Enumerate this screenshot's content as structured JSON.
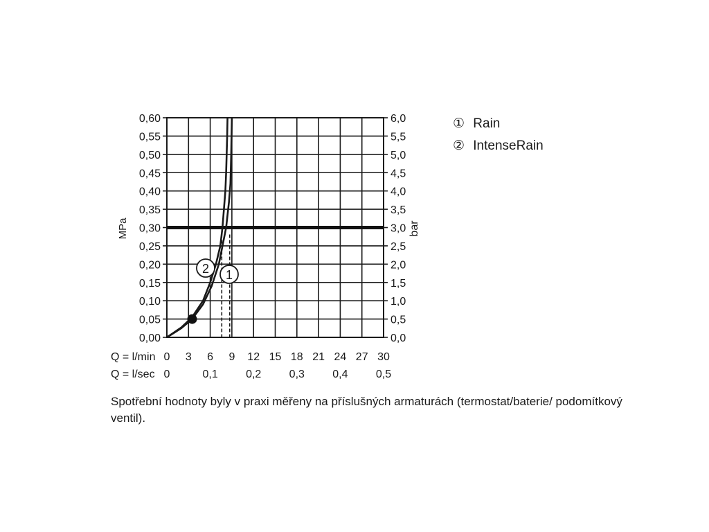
{
  "chart_data": {
    "type": "line",
    "left_axis_label": "MPa",
    "right_axis_label": "bar",
    "y_ticks_left": [
      "0,00",
      "0,05",
      "0,10",
      "0,15",
      "0,20",
      "0,25",
      "0,30",
      "0,35",
      "0,40",
      "0,45",
      "0,50",
      "0,55",
      "0,60"
    ],
    "y_ticks_right": [
      "0,0",
      "0,5",
      "1,0",
      "1,5",
      "2,0",
      "2,5",
      "3,0",
      "3,5",
      "4,0",
      "4,5",
      "5,0",
      "5,5",
      "6,0"
    ],
    "ylim": [
      0,
      0.6
    ],
    "x_row_lmin_label": "Q = l/min",
    "x_ticks_lmin": [
      "0",
      "3",
      "6",
      "9",
      "12",
      "15",
      "18",
      "21",
      "24",
      "27",
      "30"
    ],
    "x_row_lsec_label": "Q = l/sec",
    "x_ticks_lsec": [
      "0",
      "0,1",
      "0,2",
      "0,3",
      "0,4",
      "0,5"
    ],
    "xlim": [
      0,
      30
    ],
    "grid": true,
    "reference_pressure": 0.3,
    "series": [
      {
        "name": "Rain",
        "marker": "1",
        "x": [
          0,
          2,
          3.5,
          5,
          6.2,
          7.2,
          7.8,
          8.2,
          8.6,
          8.8,
          8.9,
          8.95,
          9.0
        ],
        "y": [
          0,
          0.025,
          0.05,
          0.09,
          0.14,
          0.2,
          0.26,
          0.3,
          0.37,
          0.42,
          0.5,
          0.55,
          0.6
        ],
        "design_flow": 8.7
      },
      {
        "name": "IntenseRain",
        "marker": "2",
        "x": [
          0,
          2,
          3.5,
          5,
          6.0,
          6.8,
          7.4,
          7.7,
          7.9,
          8.1,
          8.2,
          8.35,
          8.4
        ],
        "y": [
          0,
          0.027,
          0.055,
          0.1,
          0.15,
          0.2,
          0.25,
          0.3,
          0.35,
          0.4,
          0.45,
          0.55,
          0.6
        ],
        "design_flow": 7.6
      }
    ],
    "annotations": [
      "1",
      "2"
    ]
  },
  "legend": {
    "items": [
      {
        "symbol": "①",
        "label": "Rain"
      },
      {
        "symbol": "②",
        "label": "IntenseRain"
      }
    ]
  },
  "caption": "Spotřební hodnoty byly v praxi měřeny na příslušných armaturách (termostat/baterie/ podomítkový ventil)."
}
